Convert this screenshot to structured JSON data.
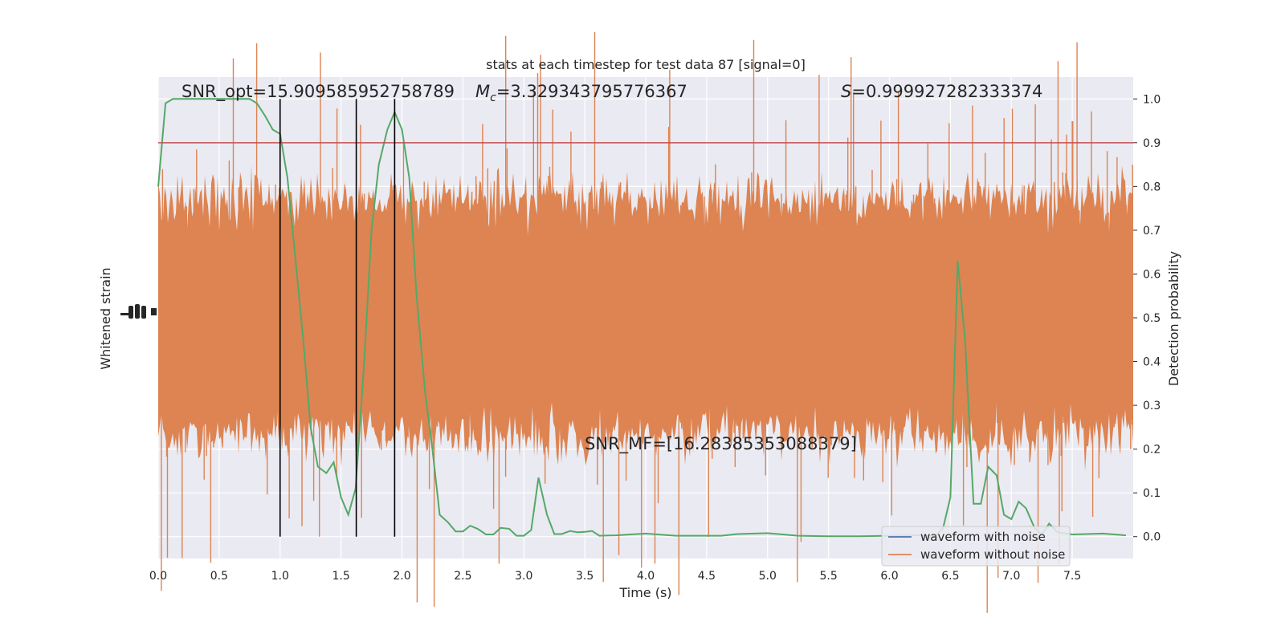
{
  "chart_data": {
    "type": "line",
    "title": "stats at each timestep for test data 87 [signal=0]",
    "xlabel": "Time (s)",
    "ylabel_left": "Whitened strain",
    "ylabel_right": "Detection probability",
    "xlim": [
      0.0,
      8.0
    ],
    "ylim_right": [
      -0.05,
      1.05
    ],
    "x_ticks": [
      "0.0",
      "0.5",
      "1.0",
      "1.5",
      "2.0",
      "2.5",
      "3.0",
      "3.5",
      "4.0",
      "4.5",
      "5.0",
      "5.5",
      "6.0",
      "6.5",
      "7.0",
      "7.5"
    ],
    "y_ticks_right": [
      "0.0",
      "0.1",
      "0.2",
      "0.3",
      "0.4",
      "0.5",
      "0.6",
      "0.7",
      "0.8",
      "0.9",
      "1.0"
    ],
    "grid": true,
    "legend_position": "lower-right",
    "annotations": {
      "snr_opt": "SNR_opt=15.909585952758789",
      "mc_symbol": "M",
      "mc_sub": "c",
      "mc_value": "=3.329343795776367",
      "s_symbol": "S",
      "s_value": "=0.999927282333374",
      "snr_mf": "SNR_MF=[16.28385353088379]"
    },
    "threshold": 0.9,
    "vertical_markers_x": [
      1.0,
      1.625,
      1.94
    ],
    "series": [
      {
        "name": "waveform with noise",
        "color": "#4c72b0"
      },
      {
        "name": "waveform without noise",
        "color": "#dd8452"
      }
    ],
    "colors": {
      "noise_fill": "#dd8452",
      "probability_line": "#55a868",
      "threshold_line": "#c44e52",
      "markers": "#000000",
      "plot_background": "#eaeaf2",
      "grid": "#ffffff"
    },
    "probability_series": {
      "x": [
        0.0,
        0.06,
        0.12,
        0.19,
        0.25,
        0.31,
        0.38,
        0.44,
        0.5,
        0.56,
        0.62,
        0.69,
        0.75,
        0.81,
        0.88,
        0.94,
        1.0,
        1.06,
        1.12,
        1.19,
        1.25,
        1.31,
        1.38,
        1.44,
        1.5,
        1.56,
        1.62,
        1.69,
        1.75,
        1.81,
        1.88,
        1.94,
        2.0,
        2.06,
        2.12,
        2.19,
        2.25,
        2.31,
        2.38,
        2.44,
        2.5,
        2.56,
        2.62,
        2.69,
        2.75,
        2.81,
        2.88,
        2.94,
        3.0,
        3.06,
        3.12,
        3.19,
        3.25,
        3.31,
        3.38,
        3.44,
        3.5,
        3.56,
        3.62,
        3.75,
        4.0,
        4.25,
        4.5,
        4.62,
        4.75,
        5.0,
        5.25,
        5.5,
        5.75,
        6.0,
        6.25,
        6.38,
        6.44,
        6.5,
        6.56,
        6.62,
        6.69,
        6.75,
        6.81,
        6.88,
        6.94,
        7.0,
        7.06,
        7.12,
        7.19,
        7.25,
        7.31,
        7.38,
        7.5,
        7.75,
        7.94
      ],
      "values": [
        0.8,
        0.99,
        1.0,
        1.0,
        1.0,
        1.0,
        1.0,
        1.0,
        1.0,
        1.0,
        1.0,
        1.0,
        1.0,
        0.99,
        0.96,
        0.93,
        0.92,
        0.82,
        0.65,
        0.45,
        0.25,
        0.16,
        0.145,
        0.17,
        0.09,
        0.05,
        0.11,
        0.4,
        0.7,
        0.85,
        0.93,
        0.97,
        0.93,
        0.82,
        0.55,
        0.33,
        0.2,
        0.05,
        0.032,
        0.012,
        0.012,
        0.025,
        0.018,
        0.005,
        0.005,
        0.02,
        0.018,
        0.002,
        0.002,
        0.015,
        0.135,
        0.05,
        0.006,
        0.006,
        0.013,
        0.01,
        0.011,
        0.013,
        0.002,
        0.003,
        0.007,
        0.002,
        0.002,
        0.002,
        0.006,
        0.008,
        0.002,
        0.001,
        0.001,
        0.002,
        0.003,
        0.002,
        0.02,
        0.09,
        0.63,
        0.45,
        0.075,
        0.075,
        0.16,
        0.14,
        0.05,
        0.04,
        0.08,
        0.065,
        0.02,
        0.005,
        0.03,
        0.01,
        0.005,
        0.007,
        0.003
      ]
    }
  }
}
